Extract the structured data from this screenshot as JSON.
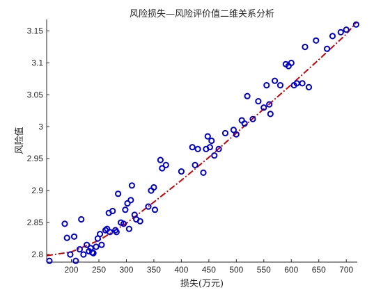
{
  "chart_data": {
    "type": "scatter",
    "title": "风险损失—风险评价值二维关系分析",
    "xlabel": "损失(万元)",
    "ylabel": "风险值",
    "xlim": [
      155,
      720
    ],
    "ylim": [
      2.788,
      3.168
    ],
    "xticks": [
      200,
      250,
      300,
      350,
      400,
      450,
      500,
      550,
      600,
      650,
      700
    ],
    "yticks": [
      2.8,
      2.85,
      2.9,
      2.95,
      3.0,
      3.05,
      3.1,
      3.15
    ],
    "ytick_labels": [
      "2.8",
      "2.85",
      "2.9",
      "2.95",
      "3",
      "3.05",
      "3.1",
      "3.15"
    ],
    "grid": false,
    "colors": {
      "points": "#0000cc",
      "fit": "#cc0000",
      "axis": "#262626"
    },
    "series": [
      {
        "kind": "points",
        "x": [
          160,
          188,
          192,
          198,
          205,
          208,
          215,
          218,
          222,
          228,
          232,
          235,
          238,
          240,
          245,
          248,
          252,
          255,
          262,
          265,
          268,
          270,
          275,
          280,
          282,
          285,
          290,
          295,
          298,
          302,
          305,
          308,
          310,
          315,
          318,
          325,
          340,
          345,
          350,
          352,
          362,
          365,
          372,
          400,
          420,
          425,
          430,
          440,
          445,
          448,
          452,
          455,
          460,
          468,
          480,
          495,
          500,
          510,
          515,
          520,
          530,
          540,
          550,
          555,
          560,
          562,
          570,
          580,
          590,
          595,
          600,
          605,
          610,
          620,
          625,
          632,
          645,
          665,
          675,
          690,
          700,
          718
        ],
        "y": [
          2.79,
          2.848,
          2.826,
          2.8,
          2.828,
          2.79,
          2.808,
          2.855,
          2.8,
          2.815,
          2.805,
          2.81,
          2.803,
          2.802,
          2.812,
          2.825,
          2.832,
          2.815,
          2.838,
          2.84,
          2.865,
          2.835,
          2.868,
          2.838,
          2.835,
          2.895,
          2.85,
          2.848,
          2.87,
          2.88,
          2.84,
          2.885,
          2.908,
          2.862,
          2.855,
          2.852,
          2.875,
          2.9,
          2.905,
          2.87,
          2.948,
          2.935,
          2.94,
          2.93,
          2.968,
          2.94,
          2.965,
          2.928,
          2.965,
          2.985,
          2.968,
          2.978,
          2.955,
          2.965,
          2.99,
          2.995,
          2.988,
          3.01,
          3.005,
          3.048,
          3.012,
          3.04,
          3.03,
          3.065,
          3.035,
          3.02,
          3.072,
          3.065,
          3.098,
          3.095,
          3.1,
          3.065,
          3.068,
          3.068,
          3.125,
          3.062,
          3.135,
          3.122,
          3.142,
          3.148,
          3.152,
          3.16
        ]
      },
      {
        "kind": "fit",
        "x": [
          155,
          200,
          250,
          300,
          350,
          400,
          450,
          500,
          550,
          600,
          650,
          700,
          718
        ],
        "y": [
          2.798,
          2.804,
          2.822,
          2.849,
          2.882,
          2.916,
          2.952,
          2.99,
          3.028,
          3.066,
          3.105,
          3.145,
          3.163
        ]
      }
    ]
  }
}
